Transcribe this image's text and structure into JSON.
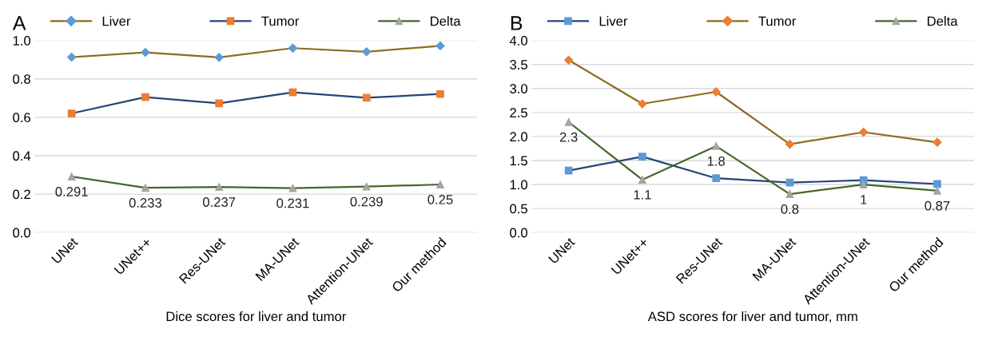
{
  "chart_data": [
    {
      "type": "line",
      "title": "A",
      "xlabel": "Dice scores for liver and tumor",
      "categories": [
        "UNet",
        "UNet++",
        "Res-UNet",
        "MA-UNet",
        "Attention-UNet",
        "Our method"
      ],
      "series": [
        {
          "name": "Liver",
          "color": "#8c6d1f",
          "colors": [
            "#5b9bd5",
            "#5b9bd5",
            "#5b9bd5",
            "#5b9bd5",
            "#5b9bd5",
            "#5b9bd5"
          ],
          "marker": "diamond",
          "values": [
            0.913,
            0.938,
            0.912,
            0.96,
            0.941,
            0.972
          ]
        },
        {
          "name": "Tumor",
          "color": "#264478",
          "colors": [
            "#ed7d31",
            "#ed7d31",
            "#ed7d31",
            "#ed7d31",
            "#ed7d31",
            "#ed7d31"
          ],
          "marker": "square",
          "values": [
            0.62,
            0.705,
            0.673,
            0.73,
            0.702,
            0.721
          ]
        },
        {
          "name": "Delta",
          "color": "#43682b",
          "colors": [
            "#a5a5a5",
            "#a5a5a5",
            "#a5a5a5",
            "#a5a5a5",
            "#a5a5a5",
            "#a5a5a5"
          ],
          "marker": "triangle",
          "values": [
            0.291,
            0.233,
            0.237,
            0.231,
            0.239,
            0.25
          ],
          "value_labels": [
            "0.291",
            "0.233",
            "0.237",
            "0.231",
            "0.239",
            "0.25"
          ]
        }
      ],
      "ylim": [
        0,
        1.0
      ],
      "yticks": [
        {
          "value": 0,
          "label": "0.0"
        },
        0.2,
        0.4,
        0.6,
        0.8,
        {
          "value": 1,
          "label": "1.0"
        }
      ],
      "grid": "y",
      "legend": "top"
    },
    {
      "type": "line",
      "title": "B",
      "xlabel": "ASD scores for liver and tumor, mm",
      "categories": [
        "UNet",
        "UNet++",
        "Res-UNet",
        "MA-UNet",
        "Attention-UNet",
        "Our method"
      ],
      "series": [
        {
          "name": "Liver",
          "color": "#264478",
          "colors": [
            "#5b9bd5",
            "#5b9bd5",
            "#5b9bd5",
            "#5b9bd5",
            "#5b9bd5",
            "#5b9bd5"
          ],
          "marker": "square",
          "values": [
            1.29,
            1.58,
            1.13,
            1.04,
            1.09,
            1.01
          ]
        },
        {
          "name": "Tumor",
          "color": "#8c6d1f",
          "colors": [
            "#ed7d31",
            "#ed7d31",
            "#ed7d31",
            "#ed7d31",
            "#ed7d31",
            "#ed7d31"
          ],
          "marker": "diamond",
          "values": [
            3.59,
            2.68,
            2.93,
            1.84,
            2.09,
            1.88
          ]
        },
        {
          "name": "Delta",
          "color": "#43682b",
          "colors": [
            "#a5a5a5",
            "#a5a5a5",
            "#a5a5a5",
            "#a5a5a5",
            "#a5a5a5",
            "#a5a5a5"
          ],
          "marker": "triangle",
          "values": [
            2.3,
            1.1,
            1.8,
            0.8,
            1,
            0.87
          ],
          "value_labels": [
            "2.3",
            "1.1",
            "1.8",
            "0.8",
            "1",
            "0.87"
          ]
        }
      ],
      "ylim": [
        0,
        4.0
      ],
      "yticks": [
        {
          "value": 0,
          "label": "0.0"
        },
        0.5,
        {
          "value": 1,
          "label": "1.0"
        },
        1.5,
        {
          "value": 2,
          "label": "2.0"
        },
        2.5,
        {
          "value": 3,
          "label": "3.0"
        },
        3.5,
        {
          "value": 4,
          "label": "4.0"
        }
      ],
      "grid": "y",
      "legend": "top"
    }
  ]
}
